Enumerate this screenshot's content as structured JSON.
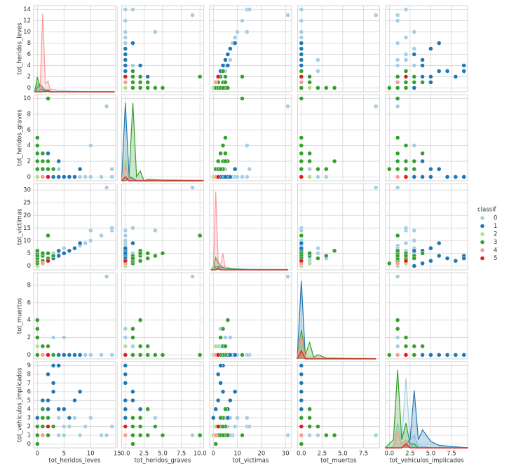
{
  "chart_data": {
    "type": "pairplot",
    "variables": [
      {
        "name": "tot_heridos_leves",
        "lim": [
          -0.7,
          14.7
        ],
        "xticks": [
          0,
          5,
          10,
          15
        ],
        "yticks": [
          0,
          2,
          4,
          6,
          8,
          10,
          12,
          14
        ],
        "kde_x": [
          -0.5,
          0,
          0.5,
          1,
          1.5,
          2,
          2.5,
          3,
          4,
          6,
          10,
          14.5
        ]
      },
      {
        "name": "tot_heridos_graves",
        "lim": [
          -0.5,
          10.5
        ],
        "xticks": [
          {
            "value": 0,
            "label": "0.0"
          },
          {
            "value": 2.5,
            "label": "2.5"
          },
          {
            "value": 5,
            "label": "5.0"
          },
          {
            "value": 7.5,
            "label": "7.5"
          },
          {
            "value": 10,
            "label": "10.0"
          }
        ],
        "yticks": [
          0,
          2,
          4,
          6,
          8,
          10
        ],
        "kde_x": [
          -0.5,
          0,
          0.5,
          1,
          1.5,
          2,
          2.5,
          3,
          5,
          10.5
        ]
      },
      {
        "name": "tot_victimas",
        "lim": [
          -1.55,
          32.55
        ],
        "xticks": [
          0,
          10,
          20,
          30
        ],
        "yticks": [
          0,
          5,
          10,
          15,
          20,
          25,
          30
        ],
        "kde_x": [
          -1,
          0,
          1,
          2,
          3,
          4,
          5,
          8,
          15,
          31
        ]
      },
      {
        "name": "tot_muertos",
        "lim": [
          -0.45,
          9.45
        ],
        "xticks": [
          {
            "value": 0,
            "label": "0.0"
          },
          {
            "value": 2.5,
            "label": "2.5"
          },
          {
            "value": 5,
            "label": "5.0"
          },
          {
            "value": 7.5,
            "label": "7.5"
          }
        ],
        "yticks": [
          0,
          2,
          4,
          6,
          8
        ],
        "kde_x": [
          -0.5,
          0,
          0.5,
          1,
          1.5,
          2,
          3,
          9
        ]
      },
      {
        "name": "tot_vehiculos_implicados",
        "lim": [
          -0.45,
          9.45
        ],
        "xticks": [
          {
            "value": 0,
            "label": "0.0"
          },
          {
            "value": 2.5,
            "label": "2.5"
          },
          {
            "value": 5,
            "label": "5.0"
          },
          {
            "value": 7.5,
            "label": "7.5"
          }
        ],
        "yticks": [
          0,
          1,
          2,
          3,
          4,
          5,
          6,
          7,
          8,
          9
        ],
        "kde_x": [
          -0.5,
          0,
          0.5,
          1,
          1.5,
          2,
          2.5,
          3,
          3.5,
          4,
          5,
          6,
          9.5
        ]
      }
    ],
    "kde_ylim": [
      0,
      1.05
    ],
    "legend_title": "classif",
    "classes": [
      {
        "name": "0",
        "color": "#a6cee3",
        "kde": [
          [
            0,
            0,
            0.02,
            0.03,
            0.03,
            0.03,
            0.03,
            0.03,
            0.02,
            0.01,
            0,
            0
          ],
          [
            0,
            0.25,
            0.03,
            0.02,
            0.01,
            0.01,
            0,
            0.01,
            0.01,
            0.01
          ],
          [
            0,
            0.01,
            0.03,
            0.03,
            0.03,
            0.03,
            0.03,
            0.02,
            0.01,
            0.005
          ],
          [
            0,
            0.3,
            0.02,
            0.02,
            0.01,
            0.01,
            0.01,
            0.005
          ],
          [
            0,
            0,
            0.02,
            0.3,
            0.1,
            0.85,
            0.1,
            0.15,
            0.02,
            0.02,
            0,
            0,
            0
          ]
        ]
      },
      {
        "name": "1",
        "color": "#1f78b4",
        "kde": [
          [
            0,
            0.05,
            0.1,
            0.05,
            0.02,
            0.01,
            0,
            0,
            0,
            0,
            0,
            0
          ],
          [
            0,
            0.95,
            0.05,
            0.03,
            0,
            0,
            0,
            0,
            0,
            0
          ],
          [
            0,
            0.02,
            0.04,
            0.04,
            0.04,
            0.03,
            0.02,
            0.01,
            0,
            0
          ],
          [
            0,
            0.95,
            0,
            0,
            0,
            0,
            0,
            0
          ],
          [
            0,
            0,
            0,
            0,
            0,
            0.05,
            0.1,
            0.7,
            0.1,
            0.22,
            0.08,
            0.03,
            0
          ]
        ]
      },
      {
        "name": "2",
        "color": "#b2df8a",
        "kde": [
          [
            0,
            0.1,
            0.05,
            0,
            0,
            0,
            0,
            0,
            0,
            0,
            0,
            0
          ],
          [
            0,
            0.3,
            0,
            0,
            0,
            0,
            0,
            0,
            0,
            0
          ],
          [
            0,
            0.05,
            0.05,
            0,
            0,
            0,
            0,
            0,
            0,
            0
          ],
          [
            0,
            0.2,
            0.02,
            0,
            0,
            0,
            0,
            0
          ],
          [
            0,
            0,
            0,
            0.2,
            0.05,
            0.1,
            0,
            0,
            0,
            0,
            0,
            0,
            0
          ]
        ]
      },
      {
        "name": "3",
        "color": "#33a02c",
        "kde": [
          [
            0,
            0.18,
            0.05,
            0.02,
            0.01,
            0,
            0,
            0,
            0,
            0,
            0,
            0
          ],
          [
            0,
            0,
            0.05,
            0.95,
            0.05,
            0.12,
            0,
            0.02,
            0.01,
            0
          ],
          [
            0,
            0,
            0.15,
            0.08,
            0.05,
            0.03,
            0.02,
            0.01,
            0,
            0
          ],
          [
            0,
            0.35,
            0.05,
            0.2,
            0.02,
            0.05,
            0.01,
            0
          ],
          [
            0,
            0.05,
            0.1,
            0.95,
            0.1,
            0.3,
            0.05,
            0.05,
            0,
            0,
            0,
            0,
            0
          ]
        ]
      },
      {
        "name": "4",
        "color": "#fb9a99",
        "kde": [
          [
            0,
            0,
            0,
            0.95,
            0.1,
            0.13,
            0,
            0,
            0,
            0,
            0,
            0
          ],
          [
            0,
            0.2,
            0,
            0,
            0,
            0,
            0,
            0,
            0,
            0
          ],
          [
            0,
            0,
            0.95,
            0.1,
            0.05,
            0.2,
            0,
            0,
            0,
            0
          ],
          [
            0,
            0.3,
            0,
            0,
            0,
            0,
            0,
            0
          ],
          [
            0,
            0,
            0,
            0.2,
            0,
            0.1,
            0,
            0,
            0,
            0,
            0,
            0,
            0
          ]
        ]
      },
      {
        "name": "5",
        "color": "#e31a1c",
        "kde": [
          [
            0,
            0,
            0,
            0,
            0,
            0.02,
            0,
            0,
            0,
            0,
            0,
            0
          ],
          [
            0,
            0.05,
            0,
            0,
            0,
            0,
            0,
            0,
            0,
            0
          ],
          [
            0,
            0,
            0,
            0.02,
            0,
            0,
            0,
            0,
            0,
            0
          ],
          [
            0,
            0.1,
            0,
            0,
            0,
            0,
            0,
            0
          ],
          [
            0,
            0,
            0,
            0,
            0,
            0.05,
            0,
            0,
            0,
            0,
            0,
            0,
            0
          ]
        ]
      }
    ],
    "rows": [
      [
        1,
        0,
        1,
        0,
        1,
        0
      ],
      [
        2,
        0,
        2,
        0,
        1,
        0
      ],
      [
        3,
        0,
        3,
        0,
        2,
        0
      ],
      [
        4,
        0,
        4,
        0,
        1,
        0
      ],
      [
        5,
        0,
        5,
        0,
        2,
        0
      ],
      [
        6,
        0,
        6,
        0,
        2,
        0
      ],
      [
        7,
        0,
        7,
        0,
        3,
        0
      ],
      [
        8,
        0,
        8,
        0,
        1,
        0
      ],
      [
        9,
        0,
        9,
        0,
        2,
        0
      ],
      [
        10,
        0,
        10,
        0,
        3,
        0
      ],
      [
        12,
        0,
        12,
        0,
        1,
        0
      ],
      [
        14,
        0,
        14,
        0,
        2,
        0
      ],
      [
        13,
        9,
        31,
        9,
        1,
        0
      ],
      [
        14,
        1,
        15,
        0,
        2,
        0
      ],
      [
        10,
        4,
        14,
        0,
        3,
        0
      ],
      [
        2,
        1,
        3,
        1,
        1,
        0
      ],
      [
        1,
        0,
        2,
        1,
        1,
        0
      ],
      [
        0,
        0,
        3,
        3,
        1,
        0
      ],
      [
        3,
        0,
        5,
        2,
        2,
        0
      ],
      [
        4,
        1,
        5,
        0,
        3,
        0
      ],
      [
        5,
        0,
        7,
        2,
        1,
        0
      ],
      [
        0,
        0,
        0,
        0,
        3,
        1
      ],
      [
        1,
        0,
        1,
        0,
        4,
        1
      ],
      [
        2,
        0,
        2,
        0,
        5,
        1
      ],
      [
        3,
        1,
        4,
        0,
        6,
        1
      ],
      [
        4,
        0,
        4,
        0,
        9,
        1
      ],
      [
        2,
        0,
        2,
        0,
        8,
        1
      ],
      [
        3,
        0,
        3,
        0,
        7,
        1
      ],
      [
        1,
        1,
        2,
        0,
        5,
        1
      ],
      [
        4,
        2,
        6,
        0,
        4,
        1
      ],
      [
        6,
        0,
        6,
        0,
        3,
        1
      ],
      [
        7,
        0,
        7,
        0,
        5,
        1
      ],
      [
        5,
        0,
        5,
        0,
        4,
        1
      ],
      [
        3,
        0,
        3,
        0,
        9,
        1
      ],
      [
        8,
        1,
        9,
        0,
        6,
        1
      ],
      [
        2,
        3,
        5,
        0,
        4,
        1
      ],
      [
        0,
        0,
        0,
        0,
        1,
        2
      ],
      [
        0,
        0,
        1,
        1,
        2,
        2
      ],
      [
        1,
        0,
        1,
        0,
        2,
        2
      ],
      [
        0,
        1,
        1,
        0,
        0,
        3
      ],
      [
        0,
        2,
        2,
        0,
        1,
        3
      ],
      [
        1,
        1,
        2,
        0,
        2,
        3
      ],
      [
        0,
        3,
        3,
        0,
        1,
        3
      ],
      [
        0,
        4,
        4,
        0,
        2,
        3
      ],
      [
        0,
        5,
        5,
        0,
        1,
        3
      ],
      [
        2,
        10,
        12,
        0,
        1,
        3
      ],
      [
        1,
        2,
        4,
        1,
        3,
        3
      ],
      [
        0,
        1,
        3,
        2,
        2,
        3
      ],
      [
        0,
        2,
        6,
        4,
        1,
        3
      ],
      [
        2,
        2,
        5,
        1,
        2,
        3
      ],
      [
        0,
        1,
        4,
        3,
        1,
        3
      ],
      [
        3,
        1,
        4,
        0,
        2,
        3
      ],
      [
        1,
        3,
        5,
        1,
        4,
        3
      ],
      [
        2,
        1,
        3,
        0,
        3,
        3
      ],
      [
        1,
        0,
        1,
        0,
        1,
        4
      ],
      [
        2,
        0,
        2,
        0,
        2,
        4
      ],
      [
        2,
        0,
        2,
        0,
        2,
        5
      ]
    ]
  }
}
